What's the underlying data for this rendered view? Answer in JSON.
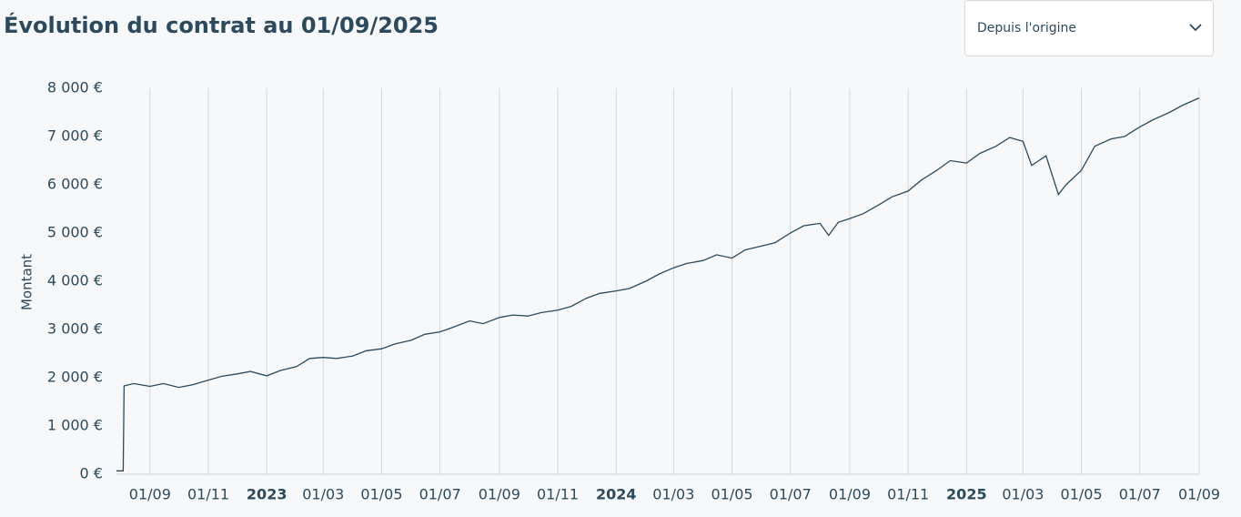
{
  "controls": {
    "period": "Depuis l'origine"
  },
  "chart_data": {
    "type": "line",
    "title": "Évolution du contrat au 01/09/2025",
    "y_label": "Montant",
    "x": [
      "2022-07-28",
      "2022-08-04",
      "2022-08-05",
      "2022-08-15",
      "2022-09-01",
      "2022-09-15",
      "2022-10-01",
      "2022-10-15",
      "2022-11-01",
      "2022-11-15",
      "2022-12-01",
      "2022-12-15",
      "2023-01-01",
      "2023-01-15",
      "2023-02-01",
      "2023-02-15",
      "2023-03-01",
      "2023-03-15",
      "2023-04-01",
      "2023-04-15",
      "2023-05-01",
      "2023-05-15",
      "2023-06-01",
      "2023-06-15",
      "2023-07-01",
      "2023-07-15",
      "2023-08-01",
      "2023-08-15",
      "2023-09-01",
      "2023-09-15",
      "2023-10-01",
      "2023-10-15",
      "2023-11-01",
      "2023-11-15",
      "2023-12-01",
      "2023-12-15",
      "2024-01-01",
      "2024-01-15",
      "2024-02-01",
      "2024-02-15",
      "2024-03-01",
      "2024-03-15",
      "2024-04-01",
      "2024-04-15",
      "2024-05-01",
      "2024-05-15",
      "2024-06-01",
      "2024-06-15",
      "2024-07-01",
      "2024-07-15",
      "2024-08-01",
      "2024-08-10",
      "2024-08-20",
      "2024-09-01",
      "2024-09-15",
      "2024-10-01",
      "2024-10-15",
      "2024-11-01",
      "2024-11-15",
      "2024-12-01",
      "2024-12-15",
      "2025-01-01",
      "2025-01-15",
      "2025-02-01",
      "2025-02-15",
      "2025-03-01",
      "2025-03-10",
      "2025-03-25",
      "2025-04-07",
      "2025-04-15",
      "2025-05-01",
      "2025-05-15",
      "2025-06-01",
      "2025-06-15",
      "2025-07-01",
      "2025-07-15",
      "2025-08-01",
      "2025-08-15",
      "2025-09-01"
    ],
    "series": [
      {
        "name": "Montant",
        "color": "#2c4a5e",
        "values": [
          70,
          70,
          1830,
          1880,
          1820,
          1880,
          1800,
          1850,
          1950,
          2030,
          2080,
          2130,
          2040,
          2150,
          2230,
          2400,
          2420,
          2400,
          2450,
          2560,
          2600,
          2700,
          2780,
          2900,
          2950,
          3050,
          3180,
          3120,
          3250,
          3300,
          3280,
          3350,
          3400,
          3480,
          3650,
          3750,
          3800,
          3850,
          4000,
          4150,
          4280,
          4370,
          4430,
          4550,
          4480,
          4650,
          4730,
          4800,
          5000,
          5150,
          5200,
          4950,
          5220,
          5300,
          5400,
          5580,
          5750,
          5870,
          6100,
          6300,
          6500,
          6450,
          6650,
          6800,
          6980,
          6900,
          6400,
          6600,
          5800,
          6000,
          6300,
          6800,
          6950,
          7000,
          7200,
          7350,
          7500,
          7650,
          7800
        ]
      }
    ],
    "xlim": [
      "2022-07-28",
      "2025-09-01"
    ],
    "xticks": [
      {
        "value": "2022-09-01",
        "label": "01/09"
      },
      {
        "value": "2022-11-01",
        "label": "01/11"
      },
      {
        "value": "2023-01-01",
        "label": "2023"
      },
      {
        "value": "2023-03-01",
        "label": "01/03"
      },
      {
        "value": "2023-05-01",
        "label": "01/05"
      },
      {
        "value": "2023-07-01",
        "label": "01/07"
      },
      {
        "value": "2023-09-01",
        "label": "01/09"
      },
      {
        "value": "2023-11-01",
        "label": "01/11"
      },
      {
        "value": "2024-01-01",
        "label": "2024"
      },
      {
        "value": "2024-03-01",
        "label": "01/03"
      },
      {
        "value": "2024-05-01",
        "label": "01/05"
      },
      {
        "value": "2024-07-01",
        "label": "01/07"
      },
      {
        "value": "2024-09-01",
        "label": "01/09"
      },
      {
        "value": "2024-11-01",
        "label": "01/11"
      },
      {
        "value": "2025-01-01",
        "label": "2025"
      },
      {
        "value": "2025-03-01",
        "label": "01/03"
      },
      {
        "value": "2025-05-01",
        "label": "01/05"
      },
      {
        "value": "2025-07-01",
        "label": "01/07"
      },
      {
        "value": "2025-09-01",
        "label": "01/09"
      }
    ],
    "ylim": [
      0,
      8000
    ],
    "yticks": [
      {
        "value": 0,
        "label": "0 €"
      },
      {
        "value": 1000,
        "label": "1 000 €"
      },
      {
        "value": 2000,
        "label": "2 000 €"
      },
      {
        "value": 3000,
        "label": "3 000 €"
      },
      {
        "value": 4000,
        "label": "4 000 €"
      },
      {
        "value": 5000,
        "label": "5 000 €"
      },
      {
        "value": 6000,
        "label": "6 000 €"
      },
      {
        "value": 7000,
        "label": "7 000 €"
      },
      {
        "value": 8000,
        "label": "8 000 €"
      }
    ],
    "grid": true
  }
}
